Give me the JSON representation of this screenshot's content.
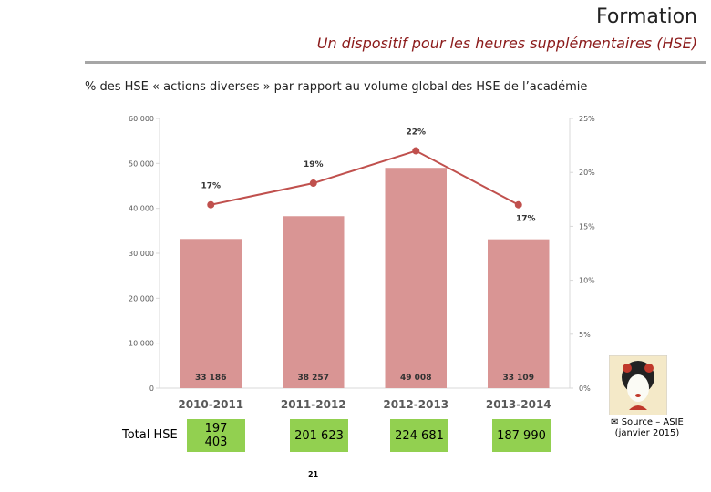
{
  "header": {
    "title": "Formation",
    "subtitle": "Un dispositif pour les heures supplémentaires (HSE)"
  },
  "caption": "% des HSE « actions diverses » par rapport au volume global des HSE de l’académie",
  "chart_data": {
    "type": "bar-line",
    "categories": [
      "2010-2011",
      "2011-2012",
      "2012-2013",
      "2013-2014"
    ],
    "series": [
      {
        "type": "bar",
        "color": "#d99594",
        "values": [
          33186,
          38257,
          49008,
          33109
        ],
        "value_labels": [
          "33 186",
          "38 257",
          "49 008",
          "33 109"
        ]
      },
      {
        "type": "line",
        "axis": "y2",
        "color": "#c0504d",
        "values": [
          17,
          19,
          22,
          17
        ],
        "value_labels": [
          "17%",
          "19%",
          "22%",
          "17%"
        ]
      }
    ],
    "ylim": [
      0,
      60000
    ],
    "yticks": [
      0,
      {
        "value": 10000,
        "label": "10 000"
      },
      {
        "value": 20000,
        "label": "20 000"
      },
      {
        "value": 30000,
        "label": "30 000"
      },
      {
        "value": 40000,
        "label": "40 000"
      },
      {
        "value": 50000,
        "label": "50 000"
      },
      {
        "value": 60000,
        "label": "60 000"
      }
    ],
    "y2lim": [
      0,
      25
    ],
    "y2ticks": [
      {
        "value": 0,
        "label": "0%"
      },
      {
        "value": 5,
        "label": "5%"
      },
      {
        "value": 10,
        "label": "10%"
      },
      {
        "value": 15,
        "label": "15%"
      },
      {
        "value": 20,
        "label": "20%"
      },
      {
        "value": 25,
        "label": "25%"
      }
    ]
  },
  "totals": {
    "label": "Total HSE",
    "values": [
      "197 403",
      "201 623",
      "224 681",
      "187 990"
    ]
  },
  "source": {
    "line1": "Source – ASIE",
    "line2": "(janvier 2015)"
  },
  "page_number": "21"
}
